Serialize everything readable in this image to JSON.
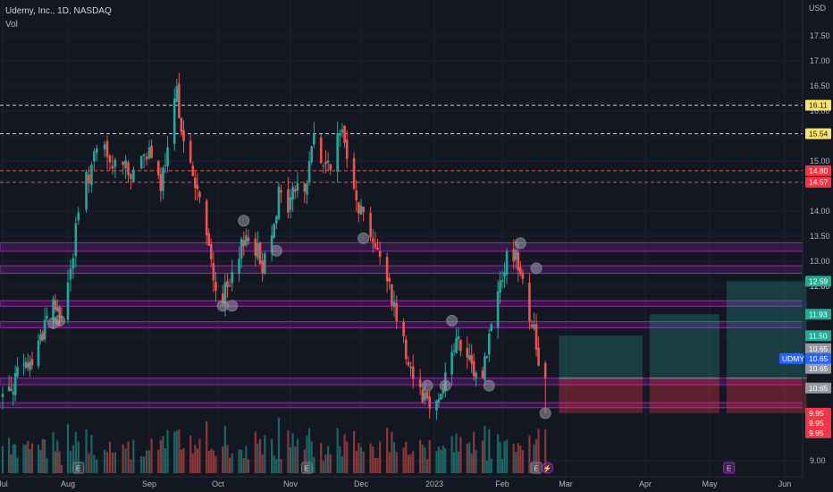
{
  "header": {
    "symbol_line": "Udemy, Inc., 1D, NASDAQ",
    "volume_label": "Vol"
  },
  "currency": "USD",
  "colors": {
    "background": "#131722",
    "up": "#26a69a",
    "down": "#ef5350",
    "zone": "#9c27b0",
    "profit": "#26a69a",
    "loss": "#f23645",
    "grid": "#1f2330"
  },
  "chart_data": {
    "type": "candlestick",
    "ylim": [
      8.85,
      17.95
    ],
    "y_ticks": [
      "9.00",
      "10.50",
      "11.00",
      "12.00",
      "12.50",
      "13.00",
      "13.50",
      "14.00",
      "15.00",
      "15.50",
      "16.00",
      "16.50",
      "17.00",
      "17.50"
    ],
    "x_ticks": [
      "Jul",
      "Aug",
      "Sep",
      "Oct",
      "Nov",
      "Dec",
      "2023",
      "Feb",
      "Mar",
      "Apr",
      "May",
      "Jun"
    ],
    "x_range": [
      "2022-07-01",
      "2023-06-05"
    ],
    "close_path": [
      [
        "2022-07-01",
        10.3
      ],
      [
        "2022-07-08",
        10.7
      ],
      [
        "2022-07-15",
        11.0
      ],
      [
        "2022-07-20",
        11.6
      ],
      [
        "2022-07-24",
        12.3
      ],
      [
        "2022-07-28",
        11.8
      ],
      [
        "2022-08-02",
        12.8
      ],
      [
        "2022-08-06",
        14.3
      ],
      [
        "2022-08-10",
        14.9
      ],
      [
        "2022-08-14",
        15.3
      ],
      [
        "2022-08-18",
        14.8
      ],
      [
        "2022-08-22",
        15.1
      ],
      [
        "2022-08-26",
        14.6
      ],
      [
        "2022-08-30",
        15.3
      ],
      [
        "2022-09-03",
        14.8
      ],
      [
        "2022-09-06",
        14.5
      ],
      [
        "2022-09-10",
        15.3
      ],
      [
        "2022-09-13",
        16.4
      ],
      [
        "2022-09-17",
        15.1
      ],
      [
        "2022-09-22",
        14.4
      ],
      [
        "2022-09-27",
        13.2
      ],
      [
        "2022-10-01",
        12.2
      ],
      [
        "2022-10-05",
        12.4
      ],
      [
        "2022-10-09",
        12.7
      ],
      [
        "2022-10-12",
        13.5
      ],
      [
        "2022-10-16",
        13.4
      ],
      [
        "2022-10-20",
        12.9
      ],
      [
        "2022-10-24",
        13.7
      ],
      [
        "2022-10-27",
        14.3
      ],
      [
        "2022-10-31",
        14.1
      ],
      [
        "2022-11-04",
        14.6
      ],
      [
        "2022-11-07",
        14.3
      ],
      [
        "2022-11-11",
        15.6
      ],
      [
        "2022-11-15",
        14.8
      ],
      [
        "2022-11-19",
        15.1
      ],
      [
        "2022-11-23",
        15.6
      ],
      [
        "2022-11-27",
        14.9
      ],
      [
        "2022-11-30",
        14.1
      ],
      [
        "2022-12-04",
        13.8
      ],
      [
        "2022-12-08",
        13.1
      ],
      [
        "2022-12-12",
        12.7
      ],
      [
        "2022-12-16",
        11.9
      ],
      [
        "2022-12-20",
        11.2
      ],
      [
        "2022-12-24",
        10.6
      ],
      [
        "2022-12-28",
        10.3
      ],
      [
        "2023-01-01",
        10.1
      ],
      [
        "2023-01-04",
        10.4
      ],
      [
        "2023-01-08",
        11.0
      ],
      [
        "2023-01-11",
        11.4
      ],
      [
        "2023-01-15",
        11.1
      ],
      [
        "2023-01-18",
        10.8
      ],
      [
        "2023-01-22",
        10.6
      ],
      [
        "2023-01-25",
        11.2
      ],
      [
        "2023-01-28",
        12.0
      ],
      [
        "2023-01-31",
        12.7
      ],
      [
        "2023-02-03",
        13.0
      ],
      [
        "2023-02-06",
        13.2
      ],
      [
        "2023-02-09",
        12.9
      ],
      [
        "2023-02-12",
        12.1
      ],
      [
        "2023-02-15",
        11.6
      ],
      [
        "2023-02-18",
        10.65
      ]
    ],
    "levels": [
      {
        "label": "16.11",
        "value": 16.11,
        "style": "dashed-yellow"
      },
      {
        "label": "15.54",
        "value": 15.54,
        "style": "dashed-yellow"
      },
      {
        "label": "14.80",
        "value": 14.8,
        "style": "dashed-red"
      },
      {
        "label": "14.57",
        "value": 14.57,
        "style": "dashed-red"
      }
    ],
    "zones": [
      {
        "from": 13.19,
        "to": 13.36
      },
      {
        "from": 12.75,
        "to": 12.9
      },
      {
        "from": 12.09,
        "to": 12.2
      },
      {
        "from": 11.66,
        "to": 11.78
      },
      {
        "from": 10.52,
        "to": 10.65
      },
      {
        "from": 10.06,
        "to": 10.16
      }
    ],
    "circles": [
      [
        "2022-07-25",
        11.75
      ],
      [
        "2022-07-28",
        11.8
      ],
      [
        "2022-10-03",
        12.1
      ],
      [
        "2022-10-07",
        12.1
      ],
      [
        "2022-10-12",
        13.8
      ],
      [
        "2022-10-26",
        13.2
      ],
      [
        "2022-12-02",
        13.45
      ],
      [
        "2022-12-29",
        10.5
      ],
      [
        "2023-01-06",
        10.5
      ],
      [
        "2023-01-09",
        11.8
      ],
      [
        "2023-01-26",
        10.5
      ],
      [
        "2023-02-09",
        13.35
      ],
      [
        "2023-02-16",
        12.85
      ],
      [
        "2023-02-20",
        9.95
      ]
    ],
    "positions": [
      {
        "from": "2023-02-26",
        "to": "2023-03-31",
        "entry": 10.65,
        "target": 11.5,
        "stop": 9.95
      },
      {
        "from": "2023-04-03",
        "to": "2023-05-05",
        "entry": 10.65,
        "target": 11.93,
        "stop": 9.95
      },
      {
        "from": "2023-05-08",
        "to": "2023-06-10",
        "entry": 10.65,
        "target": 12.59,
        "stop": 9.95
      }
    ],
    "event_markers": [
      {
        "date": "2022-08-05",
        "label": "E"
      },
      {
        "date": "2022-11-08",
        "label": "E"
      },
      {
        "date": "2023-02-16",
        "label": "E"
      },
      {
        "date": "2023-05-09",
        "label": "E"
      }
    ],
    "dividend_marker": {
      "date": "2023-02-21",
      "label": "⚡"
    }
  },
  "price_tags": [
    {
      "label": "16.11",
      "value": 16.11,
      "kind": "yellow"
    },
    {
      "label": "15.54",
      "value": 15.54,
      "kind": "yellow"
    },
    {
      "label": "14.80",
      "value": 14.8,
      "kind": "red"
    },
    {
      "label": "14.57",
      "value": 14.57,
      "kind": "red"
    },
    {
      "label": "12.59",
      "value": 12.59,
      "kind": "teal"
    },
    {
      "label": "11.93",
      "value": 11.93,
      "kind": "teal"
    },
    {
      "label": "11.50",
      "value": 11.5,
      "kind": "teal"
    },
    {
      "label": "10.65",
      "value": 10.65,
      "kind": "grey",
      "offset": -3
    },
    {
      "label": "10.65",
      "value": 10.65,
      "kind": "grey",
      "offset": -1
    },
    {
      "label": "10.65",
      "value": 10.65,
      "kind": "grey",
      "offset": 1
    },
    {
      "label": "9.95",
      "value": 9.95,
      "kind": "red",
      "offset": 0
    },
    {
      "label": "9.95",
      "value": 9.95,
      "kind": "red",
      "offset": 1
    },
    {
      "label": "9.95",
      "value": 9.95,
      "kind": "red",
      "offset": 2
    }
  ],
  "last_price": {
    "ticker": "UDMY",
    "price": "10.65",
    "value": 10.65
  }
}
